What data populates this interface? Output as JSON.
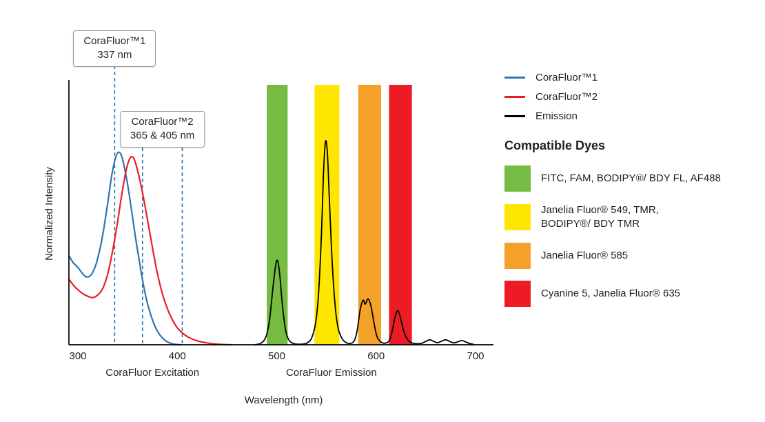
{
  "chart": {
    "y_axis_label": "Normalized Intensity",
    "x_axis_label": "Wavelength (nm)",
    "section_labels": [
      {
        "text": "CoraFluor Excitation",
        "center_nm": 375
      },
      {
        "text": "CoraFluor Emission",
        "center_nm": 555
      }
    ],
    "callouts": [
      {
        "line1": "CoraFluor™1",
        "line2": "337 nm",
        "anchors_nm": [
          337
        ]
      },
      {
        "line1": "CoraFluor™2",
        "line2": "365 & 405 nm",
        "anchors_nm": [
          365,
          405
        ]
      }
    ],
    "guide_color": "#2E74AE",
    "axis_color": "#000000",
    "text_color": "#231F20"
  },
  "chart_data": {
    "type": "line",
    "xlabel": "Wavelength (nm)",
    "ylabel": "Normalized Intensity",
    "x_ticks": [
      300,
      400,
      500,
      600,
      700
    ],
    "x_range": [
      291,
      718
    ],
    "y_range": [
      0,
      1
    ],
    "grid": false,
    "legend_position": "right",
    "guide_lines_nm": [
      337,
      365,
      405
    ],
    "series": [
      {
        "name": "CoraFluor™1",
        "color": "#2E74AE",
        "points": [
          [
            291,
            0.34
          ],
          [
            295,
            0.315
          ],
          [
            300,
            0.295
          ],
          [
            304,
            0.275
          ],
          [
            308,
            0.26
          ],
          [
            312,
            0.262
          ],
          [
            316,
            0.285
          ],
          [
            320,
            0.33
          ],
          [
            325,
            0.42
          ],
          [
            330,
            0.54
          ],
          [
            334,
            0.645
          ],
          [
            338,
            0.715
          ],
          [
            341,
            0.735
          ],
          [
            344,
            0.72
          ],
          [
            348,
            0.655
          ],
          [
            352,
            0.565
          ],
          [
            356,
            0.46
          ],
          [
            360,
            0.36
          ],
          [
            364,
            0.27
          ],
          [
            368,
            0.19
          ],
          [
            372,
            0.13
          ],
          [
            376,
            0.085
          ],
          [
            380,
            0.052
          ],
          [
            385,
            0.026
          ],
          [
            390,
            0.011
          ],
          [
            395,
            0.004
          ],
          [
            400,
            0.001
          ],
          [
            404,
            0
          ]
        ]
      },
      {
        "name": "CoraFluor™2",
        "color": "#ED1C24",
        "points": [
          [
            291,
            0.25
          ],
          [
            296,
            0.225
          ],
          [
            300,
            0.21
          ],
          [
            305,
            0.195
          ],
          [
            310,
            0.185
          ],
          [
            315,
            0.18
          ],
          [
            320,
            0.19
          ],
          [
            325,
            0.215
          ],
          [
            330,
            0.27
          ],
          [
            335,
            0.36
          ],
          [
            340,
            0.47
          ],
          [
            344,
            0.57
          ],
          [
            348,
            0.655
          ],
          [
            351,
            0.7
          ],
          [
            354,
            0.718
          ],
          [
            357,
            0.705
          ],
          [
            360,
            0.665
          ],
          [
            364,
            0.6
          ],
          [
            368,
            0.52
          ],
          [
            372,
            0.435
          ],
          [
            376,
            0.35
          ],
          [
            380,
            0.272
          ],
          [
            385,
            0.195
          ],
          [
            390,
            0.138
          ],
          [
            395,
            0.096
          ],
          [
            400,
            0.065
          ],
          [
            406,
            0.042
          ],
          [
            412,
            0.027
          ],
          [
            420,
            0.015
          ],
          [
            430,
            0.007
          ],
          [
            442,
            0.002
          ],
          [
            455,
            0
          ]
        ]
      },
      {
        "name": "Emission",
        "color": "#000000",
        "points": [
          [
            478,
            0
          ],
          [
            483,
            0.004
          ],
          [
            487,
            0.015
          ],
          [
            490,
            0.04
          ],
          [
            493,
            0.1
          ],
          [
            496,
            0.21
          ],
          [
            499,
            0.305
          ],
          [
            501,
            0.32
          ],
          [
            503,
            0.27
          ],
          [
            506,
            0.14
          ],
          [
            509,
            0.055
          ],
          [
            512,
            0.02
          ],
          [
            516,
            0.006
          ],
          [
            521,
            0.002
          ],
          [
            527,
            0.003
          ],
          [
            531,
            0.008
          ],
          [
            535,
            0.025
          ],
          [
            539,
            0.08
          ],
          [
            542,
            0.19
          ],
          [
            545,
            0.42
          ],
          [
            547,
            0.65
          ],
          [
            549,
            0.775
          ],
          [
            551,
            0.73
          ],
          [
            553,
            0.55
          ],
          [
            556,
            0.3
          ],
          [
            559,
            0.14
          ],
          [
            562,
            0.06
          ],
          [
            566,
            0.022
          ],
          [
            570,
            0.008
          ],
          [
            574,
            0.005
          ],
          [
            578,
            0.015
          ],
          [
            581,
            0.055
          ],
          [
            584,
            0.135
          ],
          [
            587,
            0.17
          ],
          [
            589,
            0.155
          ],
          [
            592,
            0.175
          ],
          [
            595,
            0.145
          ],
          [
            598,
            0.08
          ],
          [
            601,
            0.03
          ],
          [
            605,
            0.01
          ],
          [
            609,
            0.006
          ],
          [
            613,
            0.015
          ],
          [
            616,
            0.05
          ],
          [
            619,
            0.105
          ],
          [
            622,
            0.13
          ],
          [
            625,
            0.095
          ],
          [
            628,
            0.05
          ],
          [
            632,
            0.018
          ],
          [
            636,
            0.007
          ],
          [
            641,
            0.004
          ],
          [
            646,
            0.006
          ],
          [
            650,
            0.013
          ],
          [
            654,
            0.019
          ],
          [
            658,
            0.013
          ],
          [
            662,
            0.008
          ],
          [
            666,
            0.014
          ],
          [
            670,
            0.019
          ],
          [
            674,
            0.013
          ],
          [
            678,
            0.007
          ],
          [
            682,
            0.011
          ],
          [
            686,
            0.016
          ],
          [
            690,
            0.011
          ],
          [
            694,
            0.005
          ],
          [
            698,
            0.002
          ]
        ]
      }
    ],
    "bands": [
      {
        "label": "FITC, FAM, BODIPY®/ BDY FL, AF488",
        "color": "#76BC43",
        "x0": 490,
        "x1": 511
      },
      {
        "label": "Janelia Fluor® 549, TMR, BODIPY®/ BDY TMR",
        "color": "#FFE600",
        "x0": 538,
        "x1": 563
      },
      {
        "label": "Janelia Fluor® 585",
        "color": "#F5A028",
        "x0": 582,
        "x1": 605
      },
      {
        "label": "Cyanine 5, Janelia Fluor® 635",
        "color": "#ED1C24",
        "x0": 613,
        "x1": 636
      }
    ]
  },
  "legend": {
    "series": [
      {
        "label": "CoraFluor™1",
        "color": "#2E74AE"
      },
      {
        "label": "CoraFluor™2",
        "color": "#ED1C24"
      },
      {
        "label": "Emission",
        "color": "#000000"
      }
    ],
    "dyes_title": "Compatible Dyes",
    "dyes": [
      {
        "label": "FITC, FAM, BODIPY®/ BDY FL, AF488",
        "color": "#76BC43"
      },
      {
        "label": "Janelia Fluor® 549, TMR,\nBODIPY®/ BDY TMR",
        "color": "#FFE600"
      },
      {
        "label": "Janelia Fluor® 585",
        "color": "#F5A028"
      },
      {
        "label": "Cyanine 5, Janelia Fluor® 635",
        "color": "#ED1C24"
      }
    ]
  }
}
